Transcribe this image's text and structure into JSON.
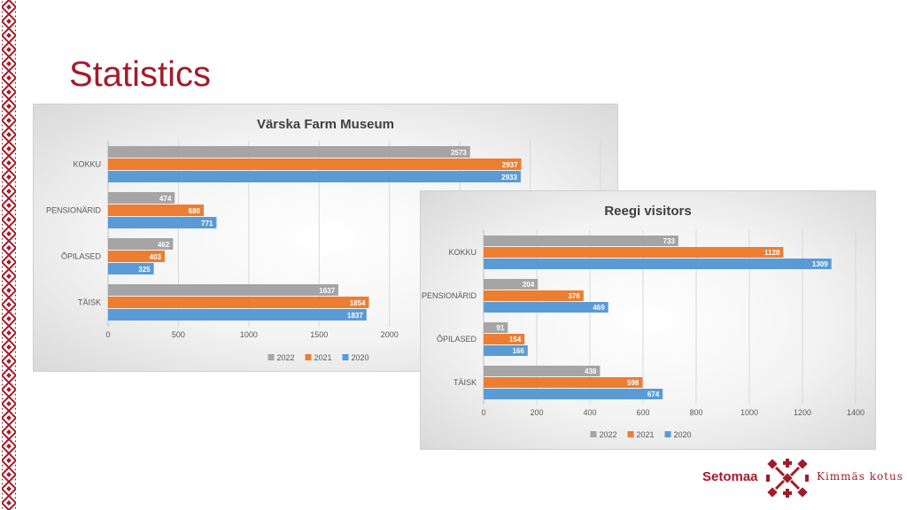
{
  "page": {
    "title": "Statistics"
  },
  "footer": {
    "brand": "Setomaa",
    "tagline": "Kimmäs kotus"
  },
  "colors": {
    "2022": "#a5a5a5",
    "2021": "#ed7d31",
    "2020": "#5b9bd5",
    "accent": "#a31b2a"
  },
  "icons": {
    "footer_logo": "setomaa-cross-pattern-icon",
    "border": "ornament-border"
  },
  "chart_data": [
    {
      "type": "bar",
      "orientation": "horizontal",
      "title": "Värska Farm Museum",
      "categories": [
        "KOKKU",
        "PENSIONÄRID",
        "ÕPILASED",
        "TÄISK"
      ],
      "series": [
        {
          "name": "2022",
          "values": [
            2573,
            474,
            462,
            1637
          ]
        },
        {
          "name": "2021",
          "values": [
            2937,
            680,
            403,
            1854
          ]
        },
        {
          "name": "2020",
          "values": [
            2933,
            771,
            325,
            1837
          ]
        }
      ],
      "xticks": [
        "0",
        "500",
        "1000",
        "1500",
        "2000"
      ],
      "xlim": [
        0,
        3500
      ],
      "grid": true,
      "legend": "bottom"
    },
    {
      "type": "bar",
      "orientation": "horizontal",
      "title": "Reegi visitors",
      "categories": [
        "KOKKU",
        "PENSIONÄRID",
        "ÕPILASED",
        "TÄISK"
      ],
      "series": [
        {
          "name": "2022",
          "values": [
            733,
            204,
            91,
            438
          ]
        },
        {
          "name": "2021",
          "values": [
            1128,
            376,
            154,
            598
          ]
        },
        {
          "name": "2020",
          "values": [
            1309,
            469,
            166,
            674
          ]
        }
      ],
      "xticks": [
        "0",
        "200",
        "400",
        "600",
        "800",
        "1000",
        "1200",
        "1400"
      ],
      "xlim": [
        0,
        1400
      ],
      "grid": true,
      "legend": "bottom"
    }
  ]
}
